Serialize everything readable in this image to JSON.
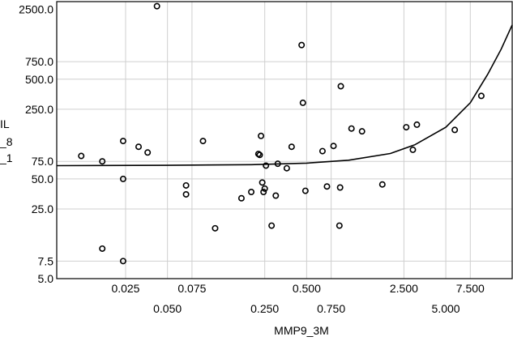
{
  "chart_data": {
    "type": "scatter",
    "xlabel": "MMP9_3M",
    "ylabel_lines": [
      "IL",
      "_8",
      "_1"
    ],
    "x_scale": "log",
    "y_scale": "log",
    "xlim": [
      0.008,
      15
    ],
    "ylim": [
      5.0,
      3000
    ],
    "x_ticks_row1": [
      {
        "v": 0.025,
        "label": "0.025"
      },
      {
        "v": 0.075,
        "label": "0.075"
      },
      {
        "v": 0.5,
        "label": "0.500"
      },
      {
        "v": 2.5,
        "label": "2.500"
      },
      {
        "v": 7.5,
        "label": "7.500"
      }
    ],
    "x_ticks_row2": [
      {
        "v": 0.05,
        "label": "0.050"
      },
      {
        "v": 0.25,
        "label": "0.250"
      },
      {
        "v": 0.75,
        "label": "0.750"
      },
      {
        "v": 5.0,
        "label": "5.000"
      }
    ],
    "y_ticks": [
      {
        "v": 2500,
        "label": "2500.0"
      },
      {
        "v": 750,
        "label": "750.0"
      },
      {
        "v": 500,
        "label": "500.0"
      },
      {
        "v": 250,
        "label": "250.0"
      },
      {
        "v": 75,
        "label": "75.0"
      },
      {
        "v": 50,
        "label": "50.0"
      },
      {
        "v": 25,
        "label": "25.0"
      },
      {
        "v": 7.5,
        "label": "7.5"
      },
      {
        "v": 5.0,
        "label": "5.0"
      }
    ],
    "grid": true,
    "points": [
      {
        "x": 0.012,
        "y": 85
      },
      {
        "x": 0.017,
        "y": 75
      },
      {
        "x": 0.017,
        "y": 10
      },
      {
        "x": 0.024,
        "y": 120
      },
      {
        "x": 0.024,
        "y": 50
      },
      {
        "x": 0.024,
        "y": 7.5
      },
      {
        "x": 0.031,
        "y": 105
      },
      {
        "x": 0.036,
        "y": 92
      },
      {
        "x": 0.042,
        "y": 2700
      },
      {
        "x": 0.068,
        "y": 43
      },
      {
        "x": 0.068,
        "y": 35
      },
      {
        "x": 0.09,
        "y": 120
      },
      {
        "x": 0.11,
        "y": 16
      },
      {
        "x": 0.17,
        "y": 32
      },
      {
        "x": 0.2,
        "y": 37
      },
      {
        "x": 0.225,
        "y": 89
      },
      {
        "x": 0.23,
        "y": 87
      },
      {
        "x": 0.235,
        "y": 135
      },
      {
        "x": 0.24,
        "y": 46
      },
      {
        "x": 0.245,
        "y": 37
      },
      {
        "x": 0.25,
        "y": 40
      },
      {
        "x": 0.255,
        "y": 68
      },
      {
        "x": 0.28,
        "y": 17
      },
      {
        "x": 0.3,
        "y": 34
      },
      {
        "x": 0.31,
        "y": 71
      },
      {
        "x": 0.36,
        "y": 64
      },
      {
        "x": 0.39,
        "y": 105
      },
      {
        "x": 0.46,
        "y": 1100
      },
      {
        "x": 0.47,
        "y": 290
      },
      {
        "x": 0.49,
        "y": 38
      },
      {
        "x": 0.65,
        "y": 95
      },
      {
        "x": 0.7,
        "y": 42
      },
      {
        "x": 0.78,
        "y": 107
      },
      {
        "x": 0.86,
        "y": 17
      },
      {
        "x": 0.87,
        "y": 41
      },
      {
        "x": 0.88,
        "y": 425
      },
      {
        "x": 1.05,
        "y": 160
      },
      {
        "x": 1.25,
        "y": 150
      },
      {
        "x": 1.75,
        "y": 44
      },
      {
        "x": 2.6,
        "y": 165
      },
      {
        "x": 2.9,
        "y": 98
      },
      {
        "x": 3.1,
        "y": 175
      },
      {
        "x": 5.8,
        "y": 155
      },
      {
        "x": 9.0,
        "y": 340
      }
    ],
    "fit_line": [
      {
        "x": 0.008,
        "y": 68
      },
      {
        "x": 0.05,
        "y": 68.5
      },
      {
        "x": 0.2,
        "y": 69.5
      },
      {
        "x": 0.5,
        "y": 72
      },
      {
        "x": 1.0,
        "y": 77
      },
      {
        "x": 2.0,
        "y": 90
      },
      {
        "x": 3.0,
        "y": 110
      },
      {
        "x": 5.0,
        "y": 165
      },
      {
        "x": 7.5,
        "y": 290
      },
      {
        "x": 10.0,
        "y": 560
      },
      {
        "x": 12.5,
        "y": 1000
      },
      {
        "x": 15.0,
        "y": 1750
      }
    ]
  }
}
